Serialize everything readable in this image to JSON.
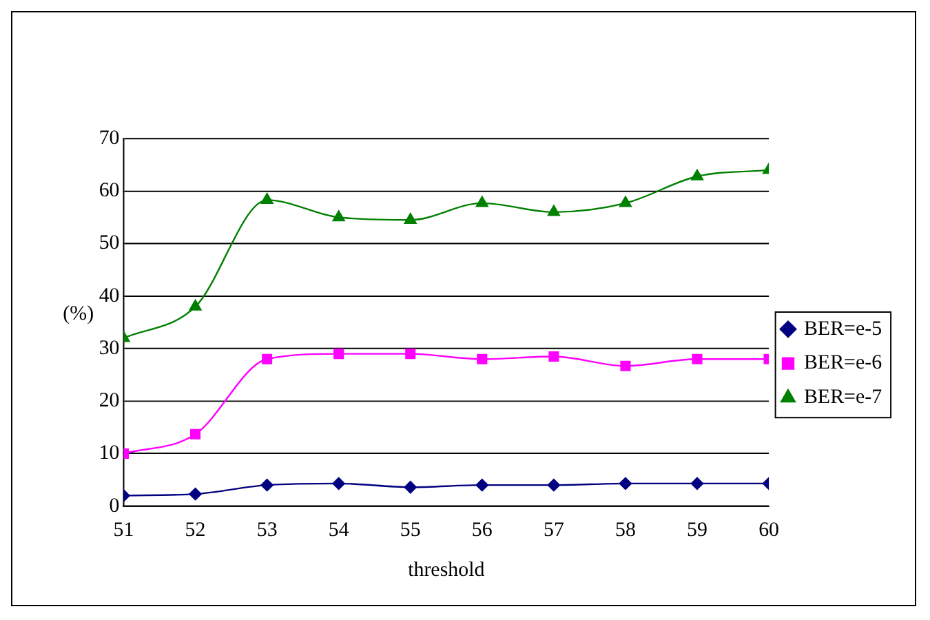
{
  "chart_data": {
    "type": "line",
    "xlabel": "threshold",
    "ylabel": "(%)",
    "x": [
      51,
      52,
      53,
      54,
      55,
      56,
      57,
      58,
      59,
      60
    ],
    "xlim": [
      51,
      60
    ],
    "xticks": [
      51,
      52,
      53,
      54,
      55,
      56,
      57,
      58,
      59,
      60
    ],
    "ylim": [
      0,
      70
    ],
    "yticks": [
      0,
      10,
      20,
      30,
      40,
      50,
      60,
      70
    ],
    "grid": "y",
    "legend": "right",
    "series": [
      {
        "name": "BER=e-5",
        "color": "#000080",
        "marker": "diamond",
        "values": [
          2,
          2.3,
          4,
          4.3,
          3.6,
          4,
          4,
          4.3,
          4.3,
          4.3
        ]
      },
      {
        "name": "BER=e-6",
        "color": "#ff00ff",
        "marker": "square",
        "values": [
          10,
          13.7,
          28,
          29,
          29,
          28,
          28.5,
          26.7,
          28,
          28
        ]
      },
      {
        "name": "BER=e-7",
        "color": "#008000",
        "marker": "triangle",
        "values": [
          32,
          38,
          58.3,
          55,
          54.5,
          57.7,
          56,
          57.7,
          62.8,
          64
        ]
      }
    ]
  }
}
